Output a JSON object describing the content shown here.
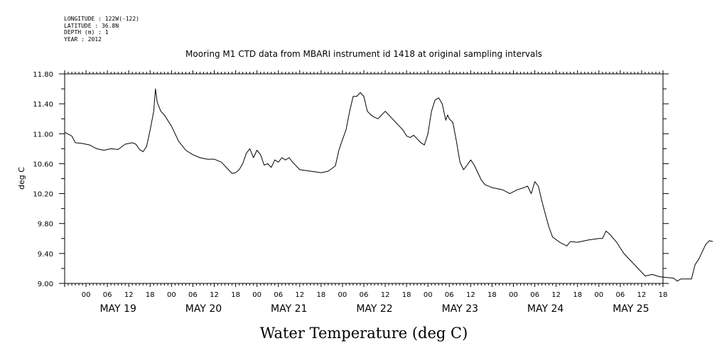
{
  "metadata": {
    "longitude": "LONGITUDE : 122W(-122)",
    "latitude": "LATITUDE : 36.8N",
    "depth": "DEPTH (m) : 1",
    "year": "YEAR : 2012"
  },
  "chart_data": {
    "type": "line",
    "title": "Mooring M1 CTD data from MBARI instrument id 1418 at original sampling intervals",
    "xlabel": "Water Temperature (deg C)",
    "ylabel": "deg C",
    "ylim": [
      9.0,
      11.8
    ],
    "yticks": [
      "11.80",
      "11.40",
      "11.00",
      "10.60",
      "10.20",
      "9.80",
      "9.40",
      "9.00"
    ],
    "ytick_values": [
      11.8,
      11.4,
      11.0,
      10.6,
      10.2,
      9.8,
      9.4,
      9.0
    ],
    "xlim_hours": [
      -6,
      162
    ],
    "x_hour_labels": [
      "00",
      "06",
      "12",
      "18",
      "00",
      "06",
      "12",
      "18",
      "00",
      "06",
      "12",
      "18",
      "00",
      "06",
      "12",
      "18",
      "00",
      "06",
      "12",
      "18",
      "00",
      "06",
      "12",
      "18",
      "00",
      "06",
      "12",
      "18"
    ],
    "day_labels": [
      "MAY 19",
      "MAY 20",
      "MAY 21",
      "MAY 22",
      "MAY 23",
      "MAY 24",
      "MAY 25"
    ],
    "grid": false,
    "series": [
      {
        "color": "#000000",
        "points": [
          [
            -6,
            11.02
          ],
          [
            -4,
            10.97
          ],
          [
            -3,
            10.88
          ],
          [
            -1,
            10.87
          ],
          [
            1,
            10.85
          ],
          [
            3,
            10.8
          ],
          [
            5,
            10.78
          ],
          [
            7,
            10.8
          ],
          [
            9,
            10.79
          ],
          [
            11,
            10.86
          ],
          [
            13,
            10.88
          ],
          [
            14,
            10.86
          ],
          [
            15,
            10.79
          ],
          [
            16,
            10.76
          ],
          [
            17,
            10.83
          ],
          [
            18,
            11.05
          ],
          [
            19,
            11.3
          ],
          [
            19.5,
            11.6
          ],
          [
            20,
            11.42
          ],
          [
            21,
            11.3
          ],
          [
            22,
            11.25
          ],
          [
            24,
            11.1
          ],
          [
            26,
            10.9
          ],
          [
            28,
            10.78
          ],
          [
            30,
            10.72
          ],
          [
            32,
            10.68
          ],
          [
            34,
            10.66
          ],
          [
            36,
            10.66
          ],
          [
            38,
            10.62
          ],
          [
            40,
            10.52
          ],
          [
            41,
            10.47
          ],
          [
            42,
            10.48
          ],
          [
            43,
            10.52
          ],
          [
            44,
            10.6
          ],
          [
            45,
            10.74
          ],
          [
            46,
            10.8
          ],
          [
            47,
            10.68
          ],
          [
            48,
            10.78
          ],
          [
            49,
            10.72
          ],
          [
            50,
            10.58
          ],
          [
            51,
            10.6
          ],
          [
            52,
            10.55
          ],
          [
            53,
            10.65
          ],
          [
            54,
            10.62
          ],
          [
            55,
            10.68
          ],
          [
            56,
            10.65
          ],
          [
            57,
            10.68
          ],
          [
            58,
            10.62
          ],
          [
            60,
            10.52
          ],
          [
            63,
            10.5
          ],
          [
            66,
            10.48
          ],
          [
            68,
            10.5
          ],
          [
            70,
            10.57
          ],
          [
            71,
            10.78
          ],
          [
            72,
            10.92
          ],
          [
            73,
            11.05
          ],
          [
            74,
            11.3
          ],
          [
            75,
            11.5
          ],
          [
            76,
            11.5
          ],
          [
            77,
            11.55
          ],
          [
            78,
            11.5
          ],
          [
            79,
            11.3
          ],
          [
            80,
            11.25
          ],
          [
            81,
            11.22
          ],
          [
            82,
            11.2
          ],
          [
            83,
            11.25
          ],
          [
            84,
            11.3
          ],
          [
            85,
            11.25
          ],
          [
            86,
            11.2
          ],
          [
            87,
            11.15
          ],
          [
            88,
            11.1
          ],
          [
            89,
            11.05
          ],
          [
            90,
            10.97
          ],
          [
            91,
            10.95
          ],
          [
            92,
            10.98
          ],
          [
            93,
            10.93
          ],
          [
            94,
            10.88
          ],
          [
            95,
            10.85
          ],
          [
            96,
            11.0
          ],
          [
            97,
            11.3
          ],
          [
            98,
            11.45
          ],
          [
            99,
            11.48
          ],
          [
            100,
            11.4
          ],
          [
            101,
            11.18
          ],
          [
            101.5,
            11.25
          ],
          [
            102,
            11.2
          ],
          [
            103,
            11.15
          ],
          [
            104,
            10.9
          ],
          [
            105,
            10.62
          ],
          [
            106,
            10.52
          ],
          [
            107,
            10.58
          ],
          [
            108,
            10.65
          ],
          [
            109,
            10.58
          ],
          [
            110,
            10.48
          ],
          [
            111,
            10.38
          ],
          [
            112,
            10.32
          ],
          [
            114,
            10.28
          ],
          [
            117,
            10.25
          ],
          [
            119,
            10.2
          ],
          [
            121,
            10.25
          ],
          [
            123,
            10.28
          ],
          [
            124,
            10.3
          ],
          [
            125,
            10.2
          ],
          [
            126,
            10.36
          ],
          [
            127,
            10.3
          ],
          [
            128,
            10.1
          ],
          [
            129,
            9.92
          ],
          [
            130,
            9.75
          ],
          [
            131,
            9.62
          ],
          [
            133,
            9.55
          ],
          [
            135,
            9.5
          ],
          [
            136,
            9.56
          ],
          [
            138,
            9.55
          ],
          [
            141,
            9.58
          ],
          [
            144,
            9.6
          ],
          [
            145,
            9.6
          ],
          [
            146,
            9.7
          ],
          [
            147,
            9.66
          ],
          [
            149,
            9.55
          ],
          [
            151,
            9.4
          ],
          [
            153,
            9.3
          ],
          [
            155,
            9.2
          ],
          [
            157,
            9.1
          ],
          [
            159,
            9.12
          ],
          [
            161,
            9.09
          ],
          [
            163,
            9.08
          ],
          [
            165,
            9.07
          ],
          [
            166,
            9.03
          ],
          [
            167,
            9.06
          ],
          [
            170,
            9.06
          ],
          [
            171,
            9.25
          ],
          [
            172,
            9.32
          ],
          [
            173,
            9.42
          ],
          [
            174,
            9.52
          ],
          [
            175,
            9.57
          ],
          [
            176,
            9.56
          ]
        ]
      }
    ]
  }
}
